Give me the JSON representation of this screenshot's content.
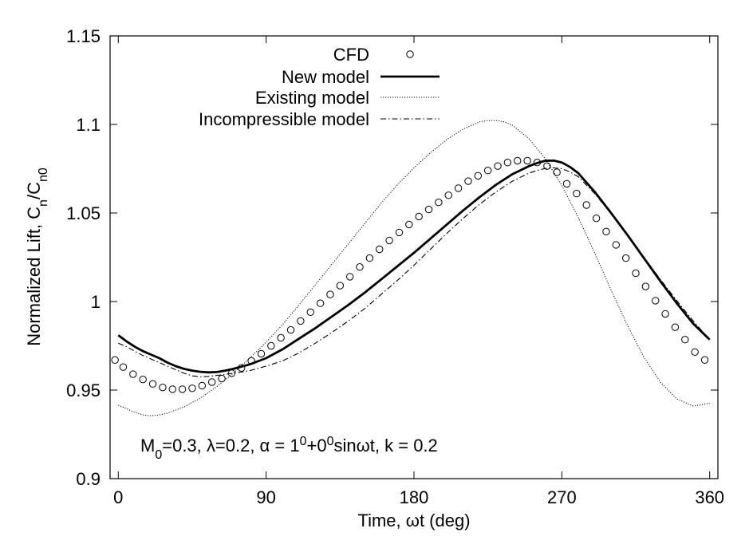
{
  "chart_data": {
    "type": "line",
    "title": "",
    "xlabel": "Time, ωt (deg)",
    "ylabel": "Normalized Lift, C_n/C_n0",
    "xlim": [
      -5,
      365
    ],
    "ylim": [
      0.9,
      1.15
    ],
    "xticks": [
      "0",
      "90",
      "180",
      "270",
      "360"
    ],
    "yticks": [
      "0.9",
      "0.95",
      "1",
      "1.05",
      "1.1",
      "1.15"
    ],
    "grid": false,
    "legend_position": "top-right",
    "annotation": "M0=0.3, λ=0.2, α = 10+00sinωt, k = 0.2",
    "series": [
      {
        "name": "CFD",
        "style": "markers-open-circle",
        "x": [
          -2,
          3,
          9,
          15,
          21,
          27,
          33,
          39,
          45,
          51,
          57,
          63,
          69,
          75,
          81,
          87,
          93,
          99,
          105,
          111,
          117,
          123,
          129,
          135,
          141,
          147,
          153,
          159,
          165,
          171,
          177,
          183,
          189,
          195,
          201,
          207,
          213,
          219,
          225,
          231,
          237,
          243,
          249,
          255,
          261,
          267,
          273,
          279,
          285,
          291,
          297,
          303,
          309,
          315,
          321,
          327,
          333,
          339,
          345,
          351,
          357
        ],
        "y": [
          0.967,
          0.963,
          0.959,
          0.956,
          0.9535,
          0.9515,
          0.9505,
          0.9505,
          0.951,
          0.9525,
          0.9545,
          0.9565,
          0.9595,
          0.9625,
          0.9665,
          0.9705,
          0.975,
          0.9795,
          0.984,
          0.989,
          0.994,
          0.999,
          1.004,
          1.009,
          1.014,
          1.0195,
          1.0245,
          1.0295,
          1.0345,
          1.039,
          1.0435,
          1.048,
          1.052,
          1.056,
          1.06,
          1.064,
          1.068,
          1.071,
          1.074,
          1.0765,
          1.0785,
          1.0795,
          1.0795,
          1.0785,
          1.0765,
          1.073,
          1.0665,
          1.061,
          1.0545,
          1.047,
          1.0395,
          1.032,
          1.0245,
          1.016,
          1.0085,
          1.0005,
          0.993,
          0.9855,
          0.9785,
          0.9715,
          0.967
        ]
      },
      {
        "name": "New model",
        "style": "solid-thick",
        "x": [
          0,
          5,
          10,
          15,
          20,
          25,
          30,
          35,
          40,
          45,
          50,
          55,
          60,
          65,
          70,
          80,
          90,
          100,
          110,
          120,
          130,
          140,
          150,
          160,
          170,
          180,
          190,
          200,
          210,
          220,
          230,
          240,
          250,
          255,
          260,
          265,
          270,
          275,
          280,
          290,
          300,
          310,
          320,
          330,
          340,
          350,
          360
        ],
        "y": [
          0.981,
          0.9775,
          0.9745,
          0.972,
          0.97,
          0.968,
          0.9655,
          0.9635,
          0.962,
          0.961,
          0.9603,
          0.96,
          0.9602,
          0.961,
          0.962,
          0.9645,
          0.968,
          0.973,
          0.979,
          0.985,
          0.9915,
          0.998,
          1.005,
          1.0125,
          1.02,
          1.0275,
          1.0355,
          1.0435,
          1.0515,
          1.059,
          1.066,
          1.072,
          1.0765,
          1.0782,
          1.0795,
          1.0796,
          1.0785,
          1.076,
          1.0725,
          1.062,
          1.05,
          1.0375,
          1.0245,
          1.0115,
          0.999,
          0.9875,
          0.9785
        ]
      },
      {
        "name": "Existing model",
        "style": "dotted",
        "x": [
          0,
          5,
          10,
          15,
          20,
          25,
          30,
          40,
          50,
          60,
          70,
          80,
          90,
          100,
          110,
          120,
          130,
          140,
          150,
          160,
          170,
          180,
          190,
          200,
          210,
          220,
          225,
          230,
          235,
          240,
          250,
          260,
          270,
          280,
          290,
          300,
          310,
          320,
          330,
          340,
          350,
          360
        ],
        "y": [
          0.9415,
          0.9395,
          0.9375,
          0.936,
          0.9355,
          0.936,
          0.937,
          0.9405,
          0.9455,
          0.952,
          0.9595,
          0.968,
          0.977,
          0.987,
          0.998,
          1.0095,
          1.021,
          1.0325,
          1.044,
          1.0555,
          1.066,
          1.0755,
          1.084,
          1.0915,
          1.0975,
          1.1015,
          1.1022,
          1.1022,
          1.1015,
          1.0995,
          1.092,
          1.0805,
          1.0655,
          1.0475,
          1.0275,
          1.0065,
          0.9865,
          0.9685,
          0.9545,
          0.945,
          0.941,
          0.9425
        ]
      },
      {
        "name": "Incompressible model",
        "style": "dash-dot",
        "x": [
          0,
          5,
          10,
          15,
          20,
          25,
          30,
          35,
          40,
          45,
          50,
          55,
          60,
          70,
          80,
          90,
          100,
          110,
          120,
          130,
          140,
          150,
          160,
          170,
          180,
          190,
          200,
          210,
          220,
          230,
          240,
          250,
          255,
          260,
          265,
          270,
          275,
          280,
          290,
          300,
          310,
          320,
          330,
          340,
          350,
          360
        ],
        "y": [
          0.9765,
          0.9745,
          0.972,
          0.9695,
          0.9675,
          0.9655,
          0.9635,
          0.9615,
          0.9595,
          0.958,
          0.9575,
          0.9577,
          0.9583,
          0.9595,
          0.961,
          0.9635,
          0.9665,
          0.971,
          0.9765,
          0.9825,
          0.989,
          0.996,
          1.004,
          1.012,
          1.0205,
          1.0295,
          1.0385,
          1.047,
          1.055,
          1.062,
          1.068,
          1.0725,
          1.074,
          1.0752,
          1.0755,
          1.075,
          1.0732,
          1.0705,
          1.061,
          1.0495,
          1.0375,
          1.025,
          1.0125,
          1.0005,
          0.989,
          0.9785
        ]
      }
    ]
  }
}
